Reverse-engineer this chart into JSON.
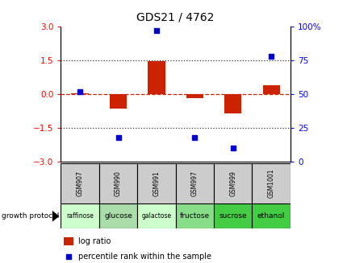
{
  "title": "GDS21 / 4762",
  "samples": [
    "GSM907",
    "GSM990",
    "GSM991",
    "GSM997",
    "GSM999",
    "GSM1001"
  ],
  "protocols": [
    "raffinose",
    "glucose",
    "galactose",
    "fructose",
    "sucrose",
    "ethanol"
  ],
  "protocol_colors": [
    "#ccffcc",
    "#aaddaa",
    "#ccffcc",
    "#88dd88",
    "#44cc44",
    "#44cc44"
  ],
  "log_ratio": [
    0.02,
    -0.65,
    1.45,
    -0.18,
    -0.85,
    0.38
  ],
  "percentile_rank": [
    52,
    18,
    97,
    18,
    10,
    78
  ],
  "ylim_left": [
    -3,
    3
  ],
  "ylim_right": [
    0,
    100
  ],
  "yticks_left": [
    -3,
    -1.5,
    0,
    1.5,
    3
  ],
  "yticks_right": [
    0,
    25,
    50,
    75,
    100
  ],
  "bar_color": "#cc2200",
  "dot_color": "#0000cc",
  "hline_color": "#cc2200",
  "dotted_color": "#333333",
  "gsm_bg": "#cccccc",
  "legend_log_color": "#cc2200",
  "legend_dot_color": "#0000cc"
}
